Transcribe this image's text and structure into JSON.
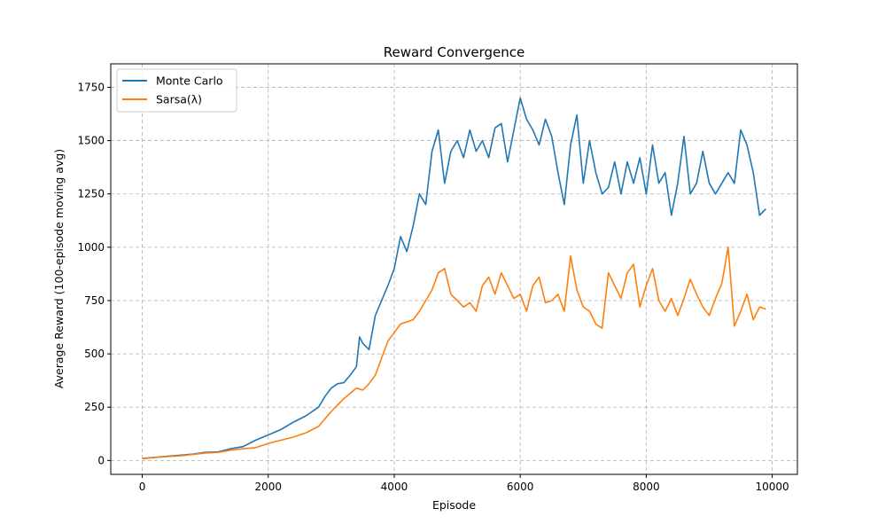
{
  "chart_data": {
    "type": "line",
    "title": "Reward Convergence",
    "xlabel": "Episode",
    "ylabel": "Average Reward (100-episode moving avg)",
    "xlim": [
      -500,
      10400
    ],
    "ylim": [
      -65,
      1860
    ],
    "x_ticks": [
      0,
      2000,
      4000,
      6000,
      8000,
      10000
    ],
    "y_ticks": [
      0,
      250,
      500,
      750,
      1000,
      1250,
      1500,
      1750
    ],
    "grid": true,
    "legend_position": "upper-left",
    "series": [
      {
        "name": "Monte Carlo",
        "color": "#1f77b4",
        "points": [
          [
            0,
            10
          ],
          [
            200,
            15
          ],
          [
            400,
            20
          ],
          [
            600,
            25
          ],
          [
            800,
            30
          ],
          [
            1000,
            38
          ],
          [
            1200,
            40
          ],
          [
            1400,
            55
          ],
          [
            1600,
            65
          ],
          [
            1800,
            95
          ],
          [
            2000,
            120
          ],
          [
            2200,
            145
          ],
          [
            2400,
            180
          ],
          [
            2600,
            210
          ],
          [
            2800,
            250
          ],
          [
            2900,
            300
          ],
          [
            3000,
            340
          ],
          [
            3100,
            360
          ],
          [
            3200,
            365
          ],
          [
            3300,
            400
          ],
          [
            3400,
            440
          ],
          [
            3450,
            580
          ],
          [
            3500,
            550
          ],
          [
            3600,
            520
          ],
          [
            3700,
            680
          ],
          [
            3800,
            750
          ],
          [
            3900,
            820
          ],
          [
            4000,
            900
          ],
          [
            4100,
            1050
          ],
          [
            4200,
            980
          ],
          [
            4300,
            1100
          ],
          [
            4400,
            1250
          ],
          [
            4500,
            1200
          ],
          [
            4600,
            1450
          ],
          [
            4700,
            1550
          ],
          [
            4800,
            1300
          ],
          [
            4900,
            1450
          ],
          [
            5000,
            1500
          ],
          [
            5100,
            1420
          ],
          [
            5200,
            1550
          ],
          [
            5300,
            1450
          ],
          [
            5400,
            1500
          ],
          [
            5500,
            1420
          ],
          [
            5600,
            1560
          ],
          [
            5700,
            1580
          ],
          [
            5800,
            1400
          ],
          [
            5900,
            1550
          ],
          [
            6000,
            1700
          ],
          [
            6100,
            1600
          ],
          [
            6200,
            1550
          ],
          [
            6300,
            1480
          ],
          [
            6400,
            1600
          ],
          [
            6500,
            1520
          ],
          [
            6600,
            1350
          ],
          [
            6700,
            1200
          ],
          [
            6800,
            1480
          ],
          [
            6900,
            1620
          ],
          [
            7000,
            1300
          ],
          [
            7100,
            1500
          ],
          [
            7200,
            1350
          ],
          [
            7300,
            1250
          ],
          [
            7400,
            1280
          ],
          [
            7500,
            1400
          ],
          [
            7600,
            1250
          ],
          [
            7700,
            1400
          ],
          [
            7800,
            1300
          ],
          [
            7900,
            1420
          ],
          [
            8000,
            1250
          ],
          [
            8100,
            1480
          ],
          [
            8200,
            1300
          ],
          [
            8300,
            1350
          ],
          [
            8400,
            1150
          ],
          [
            8500,
            1300
          ],
          [
            8600,
            1520
          ],
          [
            8700,
            1250
          ],
          [
            8800,
            1300
          ],
          [
            8900,
            1450
          ],
          [
            9000,
            1300
          ],
          [
            9100,
            1250
          ],
          [
            9200,
            1300
          ],
          [
            9300,
            1350
          ],
          [
            9400,
            1300
          ],
          [
            9500,
            1550
          ],
          [
            9600,
            1480
          ],
          [
            9700,
            1350
          ],
          [
            9800,
            1150
          ],
          [
            9900,
            1180
          ]
        ]
      },
      {
        "name": "Sarsa(λ)",
        "color": "#ff7f0e",
        "points": [
          [
            0,
            8
          ],
          [
            200,
            14
          ],
          [
            400,
            18
          ],
          [
            600,
            22
          ],
          [
            800,
            28
          ],
          [
            1000,
            35
          ],
          [
            1200,
            38
          ],
          [
            1400,
            48
          ],
          [
            1600,
            55
          ],
          [
            1800,
            60
          ],
          [
            2000,
            80
          ],
          [
            2200,
            95
          ],
          [
            2400,
            110
          ],
          [
            2600,
            130
          ],
          [
            2800,
            160
          ],
          [
            3000,
            230
          ],
          [
            3200,
            290
          ],
          [
            3400,
            340
          ],
          [
            3500,
            330
          ],
          [
            3600,
            360
          ],
          [
            3700,
            400
          ],
          [
            3800,
            480
          ],
          [
            3900,
            560
          ],
          [
            4000,
            600
          ],
          [
            4100,
            640
          ],
          [
            4200,
            650
          ],
          [
            4300,
            660
          ],
          [
            4400,
            700
          ],
          [
            4500,
            750
          ],
          [
            4600,
            800
          ],
          [
            4700,
            880
          ],
          [
            4800,
            900
          ],
          [
            4900,
            780
          ],
          [
            5000,
            750
          ],
          [
            5100,
            720
          ],
          [
            5200,
            740
          ],
          [
            5300,
            700
          ],
          [
            5400,
            820
          ],
          [
            5500,
            860
          ],
          [
            5600,
            780
          ],
          [
            5700,
            880
          ],
          [
            5800,
            820
          ],
          [
            5900,
            760
          ],
          [
            6000,
            780
          ],
          [
            6100,
            700
          ],
          [
            6200,
            820
          ],
          [
            6300,
            860
          ],
          [
            6400,
            740
          ],
          [
            6500,
            750
          ],
          [
            6600,
            780
          ],
          [
            6700,
            700
          ],
          [
            6800,
            960
          ],
          [
            6900,
            800
          ],
          [
            7000,
            720
          ],
          [
            7100,
            700
          ],
          [
            7200,
            640
          ],
          [
            7300,
            620
          ],
          [
            7400,
            880
          ],
          [
            7500,
            820
          ],
          [
            7600,
            760
          ],
          [
            7700,
            880
          ],
          [
            7800,
            920
          ],
          [
            7900,
            720
          ],
          [
            8000,
            820
          ],
          [
            8100,
            900
          ],
          [
            8200,
            750
          ],
          [
            8300,
            700
          ],
          [
            8400,
            760
          ],
          [
            8500,
            680
          ],
          [
            8600,
            760
          ],
          [
            8700,
            850
          ],
          [
            8800,
            780
          ],
          [
            8900,
            720
          ],
          [
            9000,
            680
          ],
          [
            9100,
            760
          ],
          [
            9200,
            830
          ],
          [
            9300,
            1000
          ],
          [
            9400,
            630
          ],
          [
            9500,
            700
          ],
          [
            9600,
            780
          ],
          [
            9700,
            660
          ],
          [
            9800,
            720
          ],
          [
            9900,
            710
          ]
        ]
      }
    ]
  }
}
